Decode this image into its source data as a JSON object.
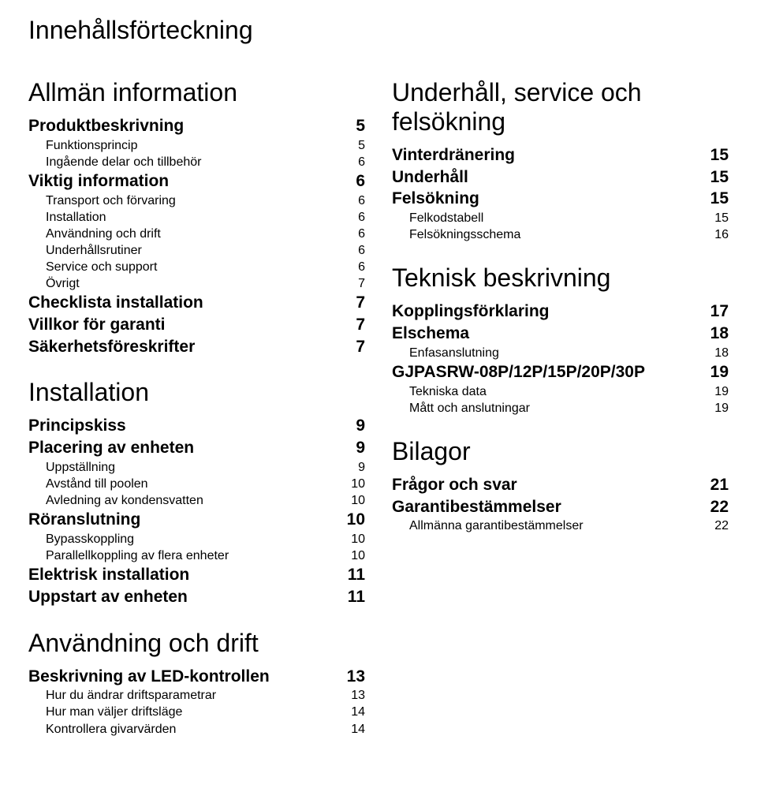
{
  "title": "Innehållsförteckning",
  "left": {
    "sections": [
      {
        "title": "Allmän information",
        "items": [
          {
            "label": "Produktbeskrivning",
            "page": "5",
            "lvl": 1
          },
          {
            "label": "Funktionsprincip",
            "page": "5",
            "lvl": 2
          },
          {
            "label": "Ingående delar och tillbehör",
            "page": "6",
            "lvl": 2
          },
          {
            "label": "Viktig information",
            "page": "6",
            "lvl": 1
          },
          {
            "label": "Transport och förvaring",
            "page": "6",
            "lvl": 2
          },
          {
            "label": "Installation",
            "page": "6",
            "lvl": 2
          },
          {
            "label": "Användning och drift",
            "page": "6",
            "lvl": 2
          },
          {
            "label": "Underhållsrutiner",
            "page": "6",
            "lvl": 2
          },
          {
            "label": "Service och support",
            "page": "6",
            "lvl": 2
          },
          {
            "label": "Övrigt",
            "page": "7",
            "lvl": 2
          },
          {
            "label": "Checklista installation",
            "page": "7",
            "lvl": 1
          },
          {
            "label": "Villkor för garanti",
            "page": "7",
            "lvl": 1
          },
          {
            "label": "Säkerhetsföreskrifter",
            "page": "7",
            "lvl": 1
          }
        ]
      },
      {
        "title": "Installation",
        "items": [
          {
            "label": "Principskiss",
            "page": "9",
            "lvl": 1
          },
          {
            "label": "Placering av enheten",
            "page": "9",
            "lvl": 1
          },
          {
            "label": "Uppställning",
            "page": "9",
            "lvl": 2
          },
          {
            "label": "Avstånd till poolen",
            "page": "10",
            "lvl": 2
          },
          {
            "label": "Avledning av kondensvatten",
            "page": "10",
            "lvl": 2
          },
          {
            "label": "Röranslutning",
            "page": "10",
            "lvl": 1
          },
          {
            "label": "Bypasskoppling",
            "page": "10",
            "lvl": 2
          },
          {
            "label": "Parallellkoppling av flera enheter",
            "page": "10",
            "lvl": 2
          },
          {
            "label": "Elektrisk installation",
            "page": "11",
            "lvl": 1
          },
          {
            "label": "Uppstart av enheten",
            "page": "11",
            "lvl": 1
          }
        ]
      },
      {
        "title": "Användning och drift",
        "items": [
          {
            "label": "Beskrivning av LED-kontrollen",
            "page": "13",
            "lvl": 1
          },
          {
            "label": "Hur du ändrar driftsparametrar",
            "page": "13",
            "lvl": 2
          },
          {
            "label": "Hur man väljer driftsläge",
            "page": "14",
            "lvl": 2
          },
          {
            "label": "Kontrollera givarvärden",
            "page": "14",
            "lvl": 2
          }
        ]
      }
    ]
  },
  "right": {
    "sections": [
      {
        "title": "Underhåll, service och felsökning",
        "items": [
          {
            "label": "Vinterdränering",
            "page": "15",
            "lvl": 1
          },
          {
            "label": "Underhåll",
            "page": "15",
            "lvl": 1
          },
          {
            "label": "Felsökning",
            "page": "15",
            "lvl": 1
          },
          {
            "label": "Felkodstabell",
            "page": "15",
            "lvl": 2
          },
          {
            "label": "Felsökningsschema",
            "page": "16",
            "lvl": 2
          }
        ]
      },
      {
        "title": "Teknisk beskrivning",
        "items": [
          {
            "label": "Kopplingsförklaring",
            "page": "17",
            "lvl": 1
          },
          {
            "label": "Elschema",
            "page": "18",
            "lvl": 1
          },
          {
            "label": "Enfasanslutning",
            "page": "18",
            "lvl": 2
          },
          {
            "label": "GJPASRW-08P/12P/15P/20P/30P",
            "page": "19",
            "lvl": 1
          },
          {
            "label": "Tekniska data",
            "page": "19",
            "lvl": 2
          },
          {
            "label": "Mått och anslutningar",
            "page": "19",
            "lvl": 2
          }
        ]
      },
      {
        "title": "Bilagor",
        "items": [
          {
            "label": "Frågor och svar",
            "page": "21",
            "lvl": 1
          },
          {
            "label": "Garantibestämmelser",
            "page": "22",
            "lvl": 1
          },
          {
            "label": "Allmänna garantibestämmelser",
            "page": "22",
            "lvl": 2
          }
        ]
      }
    ]
  }
}
